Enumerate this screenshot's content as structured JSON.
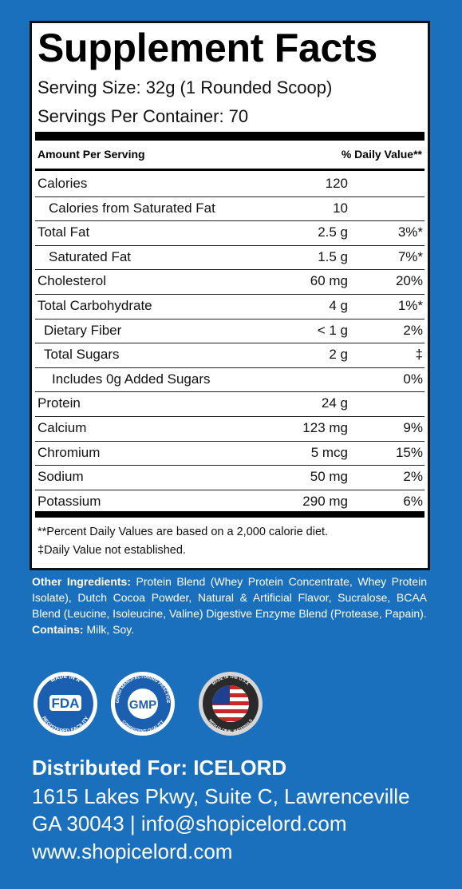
{
  "title": "Supplement Facts",
  "serving_size": "Serving Size: 32g (1 Rounded Scoop)",
  "servings_per_container": "Servings Per Container: 70",
  "header": {
    "left": "Amount Per Serving",
    "right": "% Daily Value**"
  },
  "rows": [
    {
      "name": "Calories",
      "amount": "120"
    },
    {
      "name": "Calories from Saturated Fat",
      "amount": "10"
    },
    {
      "name": "Total Fat",
      "amount": "2.5 g",
      "dv": "3%*"
    },
    {
      "name": "Saturated Fat",
      "amount": "1.5 g",
      "dv": "7%*"
    },
    {
      "name": "Cholesterol",
      "amount": "60 mg",
      "dv": "20%"
    },
    {
      "name": "Total Carbohydrate",
      "amount": "4 g",
      "dv": "1%*"
    },
    {
      "name": "Dietary Fiber",
      "amount": "< 1 g",
      "dv": "2%"
    },
    {
      "name": "Total Sugars",
      "amount": "2 g",
      "dv": "‡"
    },
    {
      "name": "Includes 0g Added Sugars",
      "dv": "0%"
    },
    {
      "name": "Protein",
      "amount": "24 g"
    },
    {
      "name": "Calcium",
      "amount": "123 mg",
      "dv": "9%"
    },
    {
      "name": "Chromium",
      "amount": "5 mcg",
      "dv": "15%"
    },
    {
      "name": "Sodium",
      "amount": "50 mg",
      "dv": "2%"
    },
    {
      "name": "Potassium",
      "amount": "290 mg",
      "dv": "6%"
    }
  ],
  "footnotes": [
    "**Percent Daily Values are based on a 2,000 calorie diet.",
    "‡Daily Value not established."
  ],
  "ingredients": {
    "label": "Other Ingredients:",
    "text": "Protein Blend (Whey Protein Concentrate, Whey Protein Isolate), Dutch Cocoa Powder, Natural & Artificial Flavor, Sucralose, BCAA Blend (Leucine, Isoleucine, Valine) Digestive Enzyme Blend (Protease, Papain)."
  },
  "contains": {
    "label": "Contains:",
    "text": "Milk, Soy."
  },
  "badges": [
    {
      "top": "MADE IN A",
      "main": "FDA",
      "bottom": "REGISTERED FACILITY"
    },
    {
      "top": "GOOD MANUFACTURING PRACTICE",
      "main": "GMP",
      "bottom": "CONSISTENT QUALITY"
    },
    {
      "top": "MADE IN THE U.S.A",
      "bottom": "WITH GLOBAL MATERIALS"
    }
  ],
  "distributor": {
    "heading": "Distributed For: ICELORD",
    "lines": [
      "1615 Lakes Pkwy, Suite C, Lawrenceville",
      "GA 30043 | info@shopicelord.com",
      "www.shopicelord.com"
    ]
  }
}
